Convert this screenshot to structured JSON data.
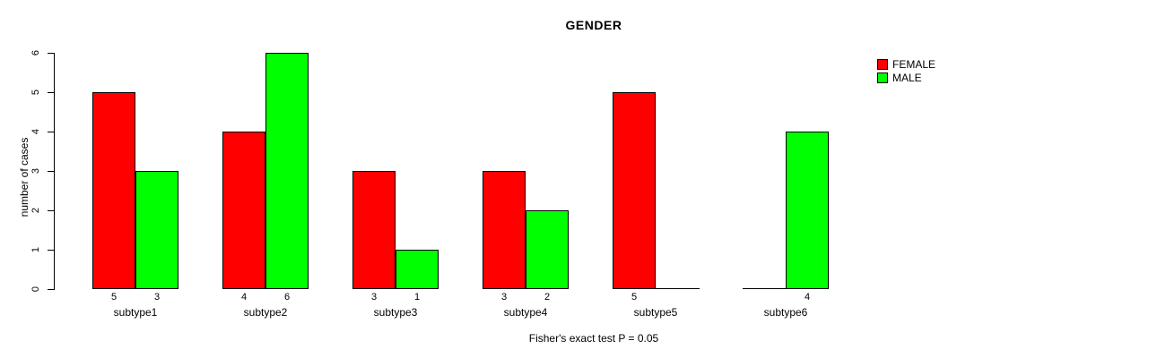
{
  "chart_data": {
    "type": "bar",
    "title": "GENDER",
    "ylabel": "number of cases",
    "xlabel": "",
    "ylim": [
      0,
      6
    ],
    "yticks": [
      0,
      1,
      2,
      3,
      4,
      5,
      6
    ],
    "categories": [
      "subtype1",
      "subtype2",
      "subtype3",
      "subtype4",
      "subtype5",
      "subtype6"
    ],
    "series": [
      {
        "name": "FEMALE",
        "color": "#FF0000",
        "values": [
          5,
          4,
          3,
          3,
          5,
          0
        ]
      },
      {
        "name": "MALE",
        "color": "#00FF00",
        "values": [
          3,
          6,
          1,
          2,
          0,
          4
        ]
      }
    ],
    "bar_value_labels": [
      {
        "category": "subtype1",
        "FEMALE": "5",
        "MALE": "3"
      },
      {
        "category": "subtype2",
        "FEMALE": "4",
        "MALE": "6"
      },
      {
        "category": "subtype3",
        "FEMALE": "3",
        "MALE": "1"
      },
      {
        "category": "subtype4",
        "FEMALE": "3",
        "MALE": "2"
      },
      {
        "category": "subtype5",
        "FEMALE": "5",
        "MALE": ""
      },
      {
        "category": "subtype6",
        "FEMALE": "",
        "MALE": "4"
      }
    ],
    "legend_position": "topright",
    "grid": false,
    "background": "#FFFFFF",
    "axis_color": "#000000",
    "footnote": "Fisher's exact test P = 0.05"
  }
}
